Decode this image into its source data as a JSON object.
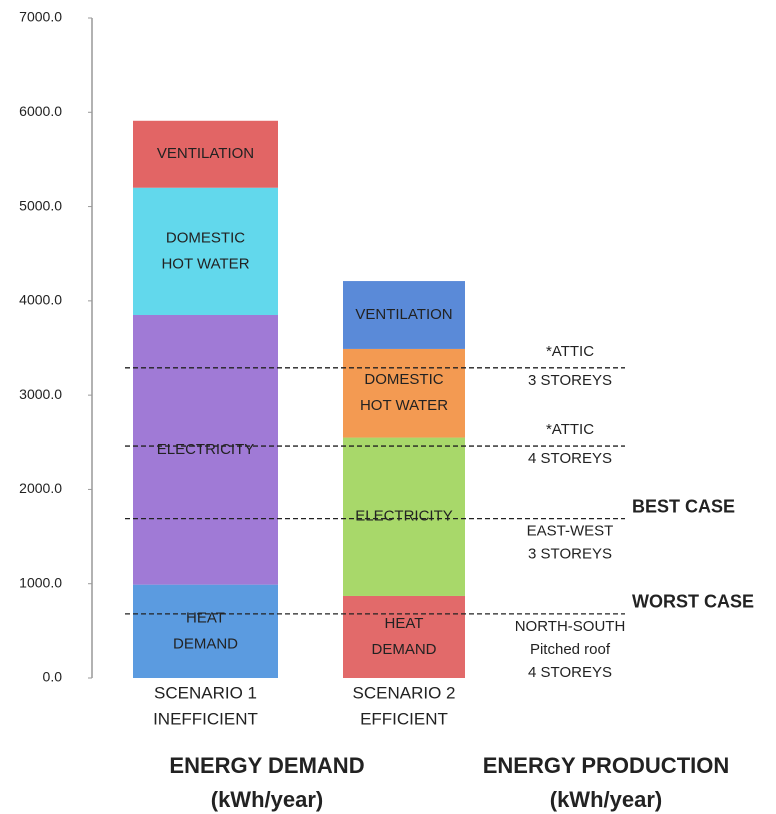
{
  "chart_data": {
    "type": "stacked_bar",
    "ylim": [
      0,
      7000
    ],
    "yticks": [
      {
        "value": 0,
        "label": "0.0"
      },
      {
        "value": 1000,
        "label": "1000.0"
      },
      {
        "value": 2000,
        "label": "2000.0"
      },
      {
        "value": 3000,
        "label": "3000.0"
      },
      {
        "value": 4000,
        "label": "4000.0"
      },
      {
        "value": 5000,
        "label": "5000.0"
      },
      {
        "value": 6000,
        "label": "6000.0"
      },
      {
        "value": 7000,
        "label": "7000.0"
      }
    ],
    "bars": [
      {
        "label": [
          "SCENARIO 1",
          "INEFFICIENT"
        ],
        "segments": [
          {
            "name": [
              "HEAT",
              "DEMAND"
            ],
            "value": 990,
            "color": "#5b9be0"
          },
          {
            "name": [
              "ELECTRICITY"
            ],
            "value": 2860,
            "color": "#a07ad6"
          },
          {
            "name": [
              "DOMESTIC",
              "HOT WATER"
            ],
            "value": 1350,
            "color": "#62d8ec"
          },
          {
            "name": [
              "VENTILATION"
            ],
            "value": 710,
            "color": "#e26565"
          }
        ]
      },
      {
        "label": [
          "SCENARIO 2",
          "EFFICIENT"
        ],
        "segments": [
          {
            "name": [
              "HEAT",
              "DEMAND"
            ],
            "value": 870,
            "color": "#e26a6a"
          },
          {
            "name": [
              "ELECTRICITY"
            ],
            "value": 1680,
            "color": "#a8d86a"
          },
          {
            "name": [
              "DOMESTIC",
              "HOT WATER"
            ],
            "value": 940,
            "color": "#f39a52"
          },
          {
            "name": [
              "VENTILATION"
            ],
            "value": 720,
            "color": "#5a8ad8"
          }
        ]
      }
    ],
    "reference_lines": [
      {
        "value": 3290,
        "above": [
          "*ATTIC"
        ],
        "below": [
          "3 STOREYS"
        ]
      },
      {
        "value": 2460,
        "above": [
          "*ATTIC"
        ],
        "below": [
          "4 STOREYS"
        ]
      },
      {
        "value": 1690,
        "above": [],
        "below": [
          "EAST-WEST",
          "3 STOREYS"
        ],
        "case": "BEST CASE"
      },
      {
        "value": 680,
        "above": [],
        "below": [
          "NORTH-SOUTH",
          "Pitched roof",
          "4 STOREYS"
        ],
        "case": "WORST CASE"
      }
    ],
    "footer_titles": [
      [
        "ENERGY DEMAND",
        "(kWh/year)"
      ],
      [
        "ENERGY PRODUCTION",
        "(kWh/year)"
      ]
    ]
  }
}
